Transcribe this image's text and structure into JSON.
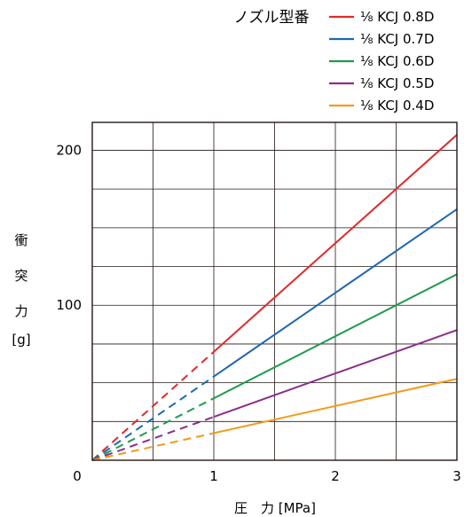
{
  "chart_data": {
    "type": "line",
    "legend_title": "ノズル型番",
    "legend_placement": "top-right",
    "xlabel": "圧　力 [MPa]",
    "ylabel_chars": [
      "衝",
      "突",
      "力"
    ],
    "ylabel_unit": "[g]",
    "xlim": [
      0,
      3
    ],
    "ylim": [
      0,
      200
    ],
    "x_ticks": [
      "0",
      "1",
      "2",
      "3"
    ],
    "y_ticks": [
      "100",
      "200"
    ],
    "grid": true,
    "dashed_below_x": 1,
    "x": [
      0,
      1,
      2,
      3
    ],
    "series": [
      {
        "name": "⅛ KCJ 0.8D",
        "color": "#e02a2a",
        "values": [
          0,
          70,
          140,
          210
        ]
      },
      {
        "name": "⅛ KCJ 0.7D",
        "color": "#1f67b0",
        "values": [
          0,
          54,
          108,
          162
        ]
      },
      {
        "name": "⅛ KCJ 0.6D",
        "color": "#1f9a4f",
        "values": [
          0,
          40,
          80,
          120
        ]
      },
      {
        "name": "⅛ KCJ 0.5D",
        "color": "#8a2e8c",
        "values": [
          0,
          28,
          56,
          84
        ]
      },
      {
        "name": "⅛ KCJ 0.4D",
        "color": "#f29a1a",
        "values": [
          0,
          17.5,
          35,
          52.5
        ]
      }
    ]
  }
}
